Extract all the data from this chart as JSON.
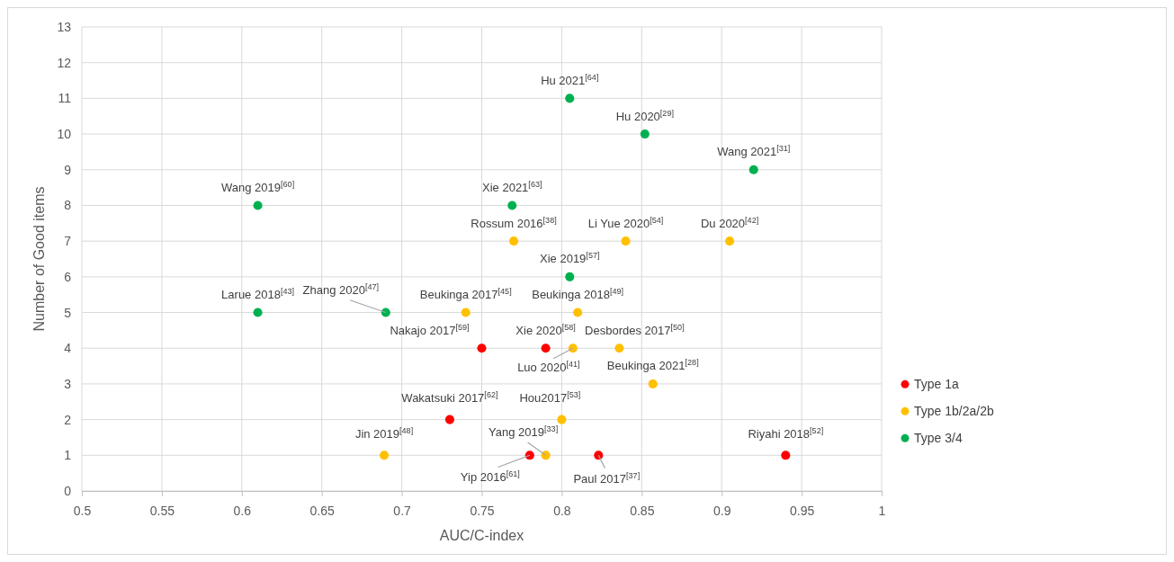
{
  "chart_data": {
    "type": "scatter",
    "xlabel": "AUC/C-index",
    "ylabel": "Number of Good items",
    "xlim": [
      0.5,
      1
    ],
    "xticks": [
      0.5,
      0.55,
      0.6,
      0.65,
      0.7,
      0.75,
      0.8,
      0.85,
      0.9,
      0.95,
      1
    ],
    "ylim": [
      0,
      13
    ],
    "yticks": [
      0,
      1,
      2,
      3,
      4,
      5,
      6,
      7,
      8,
      9,
      10,
      11,
      12,
      13
    ],
    "grid": true,
    "legend": "right",
    "marker": "circle",
    "series": [
      {
        "name": "Type 1a",
        "color": "#ff0000",
        "x": [
          0.75,
          0.79,
          0.73,
          0.78,
          0.823,
          0.94
        ],
        "values": [
          4,
          4,
          2,
          1,
          1,
          1
        ]
      },
      {
        "name": "Type 1b/2a/2b",
        "color": "#ffc000",
        "x": [
          0.77,
          0.84,
          0.905,
          0.74,
          0.81,
          0.807,
          0.836,
          0.857,
          0.8,
          0.689,
          0.79
        ],
        "values": [
          7,
          7,
          7,
          5,
          5,
          4,
          4,
          3,
          2,
          1,
          1
        ]
      },
      {
        "name": "Type 3/4",
        "color": "#00b050",
        "x": [
          0.805,
          0.852,
          0.92,
          0.61,
          0.769,
          0.805,
          0.61,
          0.69
        ],
        "values": [
          11,
          10,
          9,
          8,
          8,
          6,
          5,
          5
        ]
      }
    ],
    "annotations": [
      {
        "text": "Hu 2021$^{[64]}$",
        "x": 0.805,
        "y": 11
      },
      {
        "text": "Hu 2020$^{[29]}$",
        "x": 0.852,
        "y": 10
      },
      {
        "text": "Wang 2021$^{[31]}$",
        "x": 0.92,
        "y": 9
      },
      {
        "text": "Wang 2019$^{[60]}$",
        "x": 0.61,
        "y": 8
      },
      {
        "text": "Xie 2021$^{[63]}$",
        "x": 0.769,
        "y": 8
      },
      {
        "text": "Rossum 2016$^{[38]}$",
        "x": 0.77,
        "y": 7
      },
      {
        "text": "Li Yue 2020$^{[54]}$",
        "x": 0.84,
        "y": 7
      },
      {
        "text": "Du 2020$^{[42]}$",
        "x": 0.905,
        "y": 7
      },
      {
        "text": "Xie 2019$^{[57]}$",
        "x": 0.805,
        "y": 6
      },
      {
        "text": "Larue 2018$^{[43]}$",
        "x": 0.61,
        "y": 5
      },
      {
        "text": "Zhang 2020$^{[47]}$",
        "x": 0.69,
        "y": 5
      },
      {
        "text": "Beukinga 2017$^{[45]}$",
        "x": 0.74,
        "y": 5
      },
      {
        "text": "Beukinga 2018$^{[49]}$",
        "x": 0.81,
        "y": 5
      },
      {
        "text": "Nakajo 2017$^{[59]}$",
        "x": 0.75,
        "y": 4
      },
      {
        "text": "Xie 2020$^{[58]}$",
        "x": 0.79,
        "y": 4
      },
      {
        "text": "Luo 2020$^{[41]}$",
        "x": 0.807,
        "y": 4
      },
      {
        "text": "Desbordes 2017$^{[50]}$",
        "x": 0.836,
        "y": 4
      },
      {
        "text": "Beukinga 2021$^{[28]}$",
        "x": 0.857,
        "y": 3
      },
      {
        "text": "Wakatsuki 2017$^{[62]}$",
        "x": 0.73,
        "y": 2
      },
      {
        "text": "Hou2017$^{[53]}$",
        "x": 0.8,
        "y": 2
      },
      {
        "text": "Jin 2019$^{[48]}$",
        "x": 0.689,
        "y": 1
      },
      {
        "text": "Yang 2019$^{[33]}$",
        "x": 0.79,
        "y": 1
      },
      {
        "text": "Yip 2016$^{[61]}$",
        "x": 0.78,
        "y": 1
      },
      {
        "text": "Paul 2017$^{[37]}$",
        "x": 0.823,
        "y": 1
      },
      {
        "text": "Riyahi 2018$^{[52]}$",
        "x": 0.94,
        "y": 1
      }
    ]
  }
}
